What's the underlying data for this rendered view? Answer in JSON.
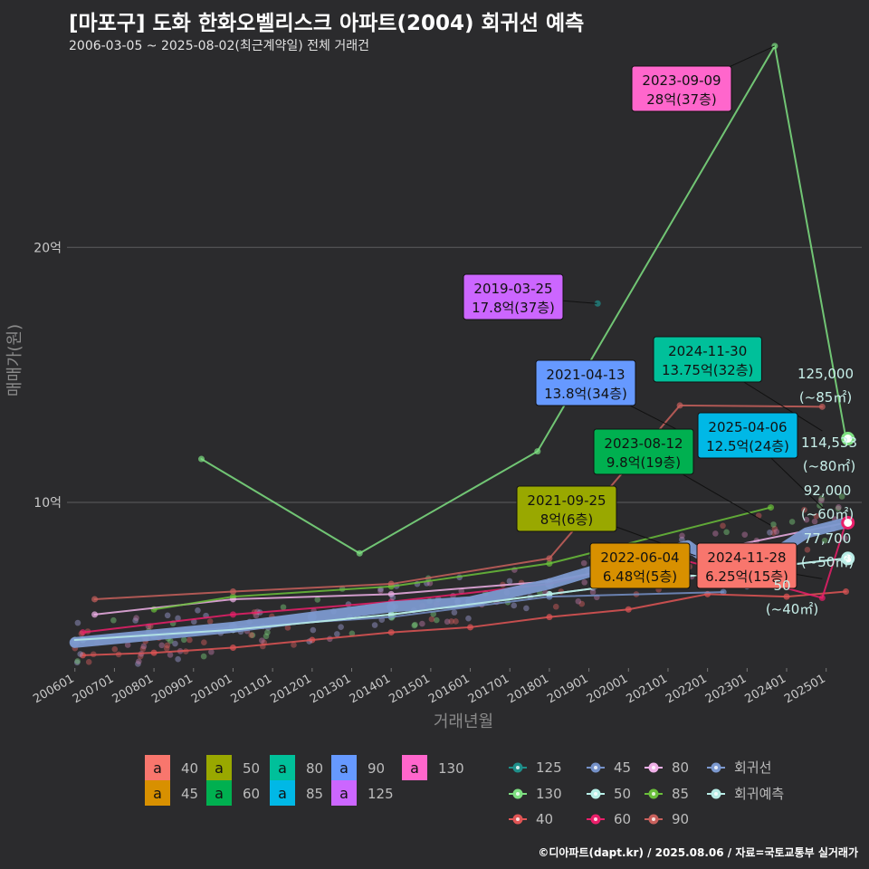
{
  "title": "[마포구] 도화 한화오벨리스크 아파트(2004) 회귀선 예측",
  "subtitle": "2006-03-05 ~ 2025-08-02(최근계약일) 전체 거래건",
  "footer": "©디아파트(dapt.kr) / 2025.08.06 / 자료=국토교통부 실거래가",
  "chart_data": {
    "type": "scatter",
    "xlabel": "거래년월",
    "ylabel": "매매가(원)",
    "x_ticks": [
      "200601",
      "200701",
      "200801",
      "200901",
      "201001",
      "201101",
      "201201",
      "201301",
      "201401",
      "201501",
      "201601",
      "201701",
      "201801",
      "201901",
      "202001",
      "202101",
      "202201",
      "202301",
      "202401",
      "202501"
    ],
    "y_ticks": [
      {
        "value": 10,
        "label": "10억"
      },
      {
        "value": 20,
        "label": "20억"
      }
    ],
    "ylim": [
      3.5,
      28
    ],
    "xlim": [
      2005.8,
      2025.9
    ],
    "grid": true,
    "series": [
      {
        "name": "125",
        "color": "#1f8f8a",
        "x": [
          2019.22
        ],
        "y": [
          17.8
        ]
      },
      {
        "name": "130",
        "color": "#7ee081",
        "x": [
          2009.2,
          2013.2,
          2017.7,
          2023.7,
          2025.5
        ],
        "y": [
          11.7,
          8.0,
          12.0,
          27.9,
          12.5
        ]
      },
      {
        "name": "40",
        "color": "#e05555",
        "x": [
          2006.2,
          2008.0,
          2010.0,
          2012.0,
          2014.0,
          2016.0,
          2018.0,
          2020.0,
          2022.0,
          2024.0,
          2025.5
        ],
        "y": [
          4.0,
          4.1,
          4.3,
          4.6,
          4.9,
          5.1,
          5.5,
          5.8,
          6.4,
          6.3,
          6.5
        ]
      },
      {
        "name": "45",
        "color": "#7591c8",
        "x": [
          2006.2,
          2010.0,
          2014.0,
          2018.0,
          2022.4
        ],
        "y": [
          4.6,
          5.1,
          5.5,
          6.3,
          6.48
        ]
      },
      {
        "name": "50",
        "color": "#b8f0e8",
        "x": [
          2006.2,
          2010.0,
          2014.0,
          2018.0,
          2022.0,
          2025.5
        ],
        "y": [
          4.6,
          5.0,
          5.6,
          6.4,
          7.2,
          7.8
        ]
      },
      {
        "name": "60",
        "color": "#ea1f6a",
        "x": [
          2006.2,
          2010.0,
          2014.0,
          2018.0,
          2021.0,
          2024.9,
          2025.5
        ],
        "y": [
          4.9,
          5.6,
          6.1,
          6.8,
          7.9,
          6.25,
          9.2
        ]
      },
      {
        "name": "80",
        "color": "#f0b0e8",
        "x": [
          2006.5,
          2010.0,
          2014.0,
          2018.0,
          2021.7,
          2025.5
        ],
        "y": [
          5.6,
          6.2,
          6.4,
          6.9,
          8.0,
          9.2
        ]
      },
      {
        "name": "85",
        "color": "#6abf3a",
        "x": [
          2008.0,
          2010.0,
          2014.0,
          2018.0,
          2023.6
        ],
        "y": [
          5.8,
          6.3,
          6.7,
          7.6,
          9.8
        ]
      },
      {
        "name": "90",
        "color": "#c8605c",
        "x": [
          2006.5,
          2010.0,
          2014.0,
          2018.0,
          2021.3,
          2024.9
        ],
        "y": [
          6.2,
          6.5,
          6.8,
          7.8,
          13.8,
          13.75
        ]
      },
      {
        "name": "회귀선",
        "color": "#7c99cf",
        "x": [
          2006.0,
          2008.0,
          2010.0,
          2012.0,
          2014.0,
          2016.0,
          2018.0,
          2019.5,
          2020.5,
          2021.5,
          2022.3,
          2023.0,
          2023.7,
          2024.5,
          2025.5
        ],
        "y": [
          4.5,
          4.8,
          5.1,
          5.5,
          5.9,
          6.1,
          6.8,
          7.5,
          7.9,
          8.3,
          7.4,
          6.8,
          8.0,
          8.8,
          9.2
        ]
      },
      {
        "name": "회귀예측",
        "color": "#b8ece6",
        "x": [
          2006.0,
          2010.0,
          2014.0,
          2018.0,
          2022.0,
          2025.5
        ],
        "y": [
          4.6,
          5.0,
          5.6,
          6.4,
          7.2,
          7.8
        ]
      }
    ],
    "callouts": [
      {
        "date": "2023-09-09",
        "price": "28억(37층)",
        "color": "#ff66cc"
      },
      {
        "date": "2019-03-25",
        "price": "17.8억(37층)",
        "color": "#cc66ff"
      },
      {
        "date": "2021-04-13",
        "price": "13.8억(34층)",
        "color": "#6699ff"
      },
      {
        "date": "2024-11-30",
        "price": "13.75억(32층)",
        "color": "#00c09a"
      },
      {
        "date": "2025-04-06",
        "price": "12.5억(24층)",
        "color": "#00b8e6"
      },
      {
        "date": "2023-08-12",
        "price": "9.8억(19층)",
        "color": "#00b050"
      },
      {
        "date": "2021-09-25",
        "price": "8억(6층)",
        "color": "#99a800"
      },
      {
        "date": "2022-06-04",
        "price": "6.48억(5층)",
        "color": "#d89000"
      },
      {
        "date": "2024-11-28",
        "price": "6.25억(15층)",
        "color": "#f8766d"
      }
    ],
    "right_labels": [
      {
        "price": "125,000",
        "size": "(~85㎡)"
      },
      {
        "price": "114,533",
        "size": "(~80㎡)"
      },
      {
        "price": "92,000",
        "size": "(~60㎡)"
      },
      {
        "price": "77,700",
        "size": "(~50㎡)"
      },
      {
        "price": "50",
        "size": "(~40㎡)"
      }
    ],
    "legend_area": [
      {
        "label": "40",
        "color": "#f8766d",
        "glyph": "a"
      },
      {
        "label": "50",
        "color": "#99a800",
        "glyph": "a"
      },
      {
        "label": "80",
        "color": "#00c09a",
        "glyph": "a"
      },
      {
        "label": "90",
        "color": "#6699ff",
        "glyph": "a"
      },
      {
        "label": "130",
        "color": "#ff66cc",
        "glyph": "a"
      },
      {
        "label": "45",
        "color": "#d89000",
        "glyph": "a"
      },
      {
        "label": "60",
        "color": "#00b050",
        "glyph": "a"
      },
      {
        "label": "85",
        "color": "#00b8e6",
        "glyph": "a"
      },
      {
        "label": "125",
        "color": "#cc66ff",
        "glyph": "a"
      }
    ],
    "legend_series": [
      {
        "label": "125",
        "color": "#1f8f8a"
      },
      {
        "label": "45",
        "color": "#7591c8"
      },
      {
        "label": "80",
        "color": "#f0b0e8"
      },
      {
        "label": "회귀선",
        "color": "#7c99cf"
      },
      {
        "label": "130",
        "color": "#7ee081"
      },
      {
        "label": "50",
        "color": "#b8f0e8"
      },
      {
        "label": "85",
        "color": "#6abf3a"
      },
      {
        "label": "회귀예측",
        "color": "#b8ece6"
      },
      {
        "label": "40",
        "color": "#e05555"
      },
      {
        "label": "60",
        "color": "#ea1f6a"
      },
      {
        "label": "90",
        "color": "#c8605c"
      }
    ]
  }
}
